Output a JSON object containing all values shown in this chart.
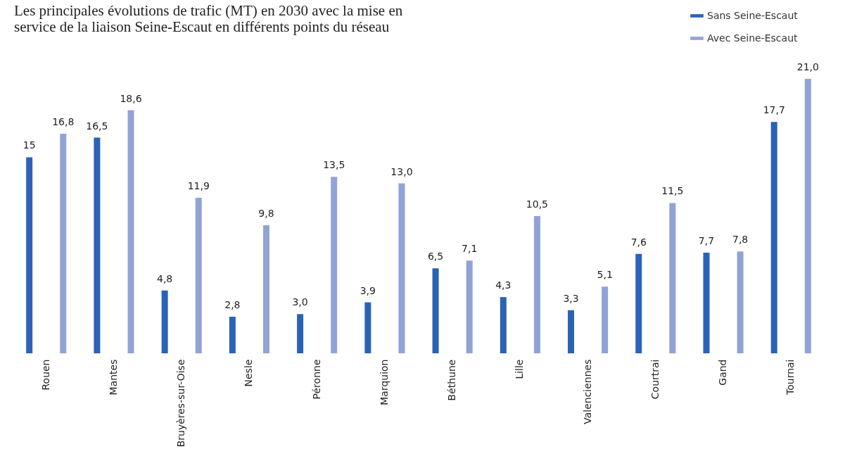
{
  "chart_data": {
    "type": "bar",
    "title": "Les principales évolutions de trafic (MT) en 2030 avec la mise en service de la liaison Seine-Escaut en différents points du réseau",
    "categories": [
      "Rouen",
      "Mantes",
      "Bruyères-sur-Oise",
      "Nesle",
      "Péronne",
      "Marquion",
      "Béthune",
      "Lille",
      "Valenciennes",
      "Courtrai",
      "Gand",
      "Tournai"
    ],
    "series": [
      {
        "name": "Sans Seine-Escaut",
        "color": "#2a62b6",
        "values": [
          15,
          16.5,
          4.8,
          2.8,
          3.0,
          3.9,
          6.5,
          4.3,
          3.3,
          7.6,
          7.7,
          17.7
        ],
        "value_labels": [
          "15",
          "16,5",
          "4,8",
          "2,8",
          "3,0",
          "3,9",
          "6,5",
          "4,3",
          "3,3",
          "7,6",
          "7,7",
          "17,7"
        ]
      },
      {
        "name": "Avec Seine-Escaut",
        "color": "#91a3d6",
        "values": [
          16.8,
          18.6,
          11.9,
          9.8,
          13.5,
          13.0,
          7.1,
          10.5,
          5.1,
          11.5,
          7.8,
          21.0
        ],
        "value_labels": [
          "16,8",
          "18,6",
          "11,9",
          "9,8",
          "13,5",
          "13,0",
          "7,1",
          "10,5",
          "5,1",
          "11,5",
          "7,8",
          "21,0"
        ]
      }
    ],
    "legend": "top right",
    "grid": false
  }
}
